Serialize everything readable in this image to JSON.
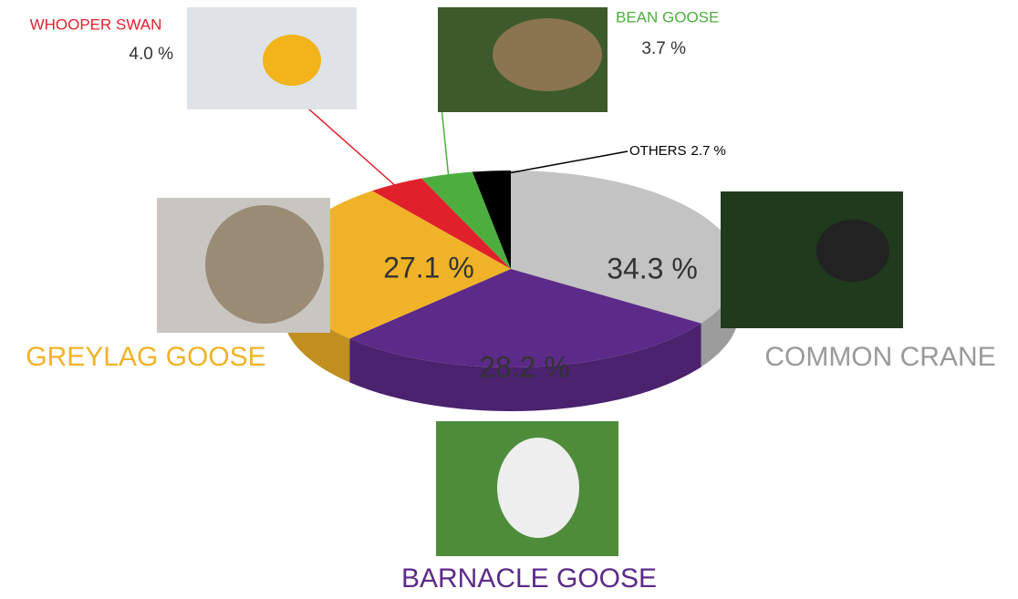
{
  "chart_data": {
    "type": "pie",
    "categories": [
      "COMMON CRANE",
      "BARNACLE GOOSE",
      "GREYLAG GOOSE",
      "WHOOPER SWAN",
      "BEAN GOOSE",
      "OTHERS"
    ],
    "values": [
      34.3,
      28.2,
      27.1,
      4.0,
      3.7,
      2.7
    ],
    "value_labels": [
      "34.3 %",
      "28.2 %",
      "27.1 %",
      "4.0 %",
      "3.7 %",
      "2.7 %"
    ],
    "colors": [
      "#c3c3c3",
      "#5c2a88",
      "#f0b328",
      "#e0212b",
      "#4dae3f",
      "#000000"
    ]
  }
}
